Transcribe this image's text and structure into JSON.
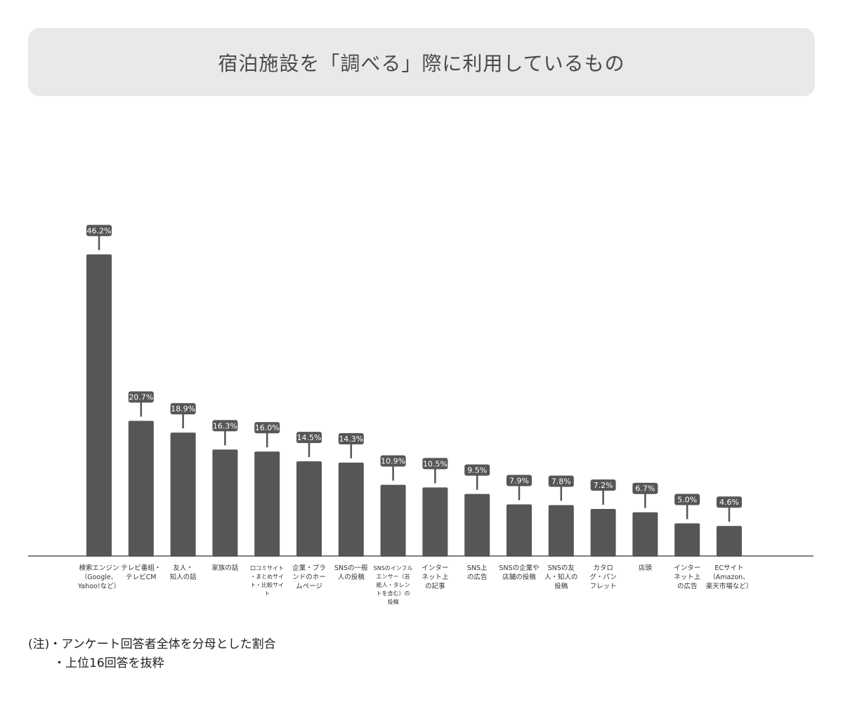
{
  "title": "宿泊施設を「調べる」際に利用しているもの",
  "notes": {
    "line1": "(注)・アンケート回答者全体を分母とした割合",
    "line2": "・上位16回答を抜粋"
  },
  "colors": {
    "bar": "#575557",
    "label_bg": "#575557",
    "label_text": "#ffffff",
    "axis": "#555555",
    "title_bg": "#e9e8ea"
  },
  "chart_data": {
    "type": "bar",
    "title": "宿泊施設を「調べる」際に利用しているもの",
    "unit": "%",
    "categories": [
      [
        "検索エンジン",
        "（Google、",
        "Yahoo!など）"
      ],
      [
        "テレビ番組・",
        "テレビCM"
      ],
      [
        "友人・",
        "知人の話"
      ],
      [
        "家族の話"
      ],
      [
        "口コミサイト",
        "・まとめサイ",
        "ト・比較サイ",
        "ト"
      ],
      [
        "企業・ブラ",
        "ンドのホー",
        "ムページ"
      ],
      [
        "SNSの一般",
        "人の投稿"
      ],
      [
        "SNSのインフル",
        "エンサー（芸",
        "能人・タレン",
        "トを含む）の",
        "投稿"
      ],
      [
        "インター",
        "ネット上",
        "の記事"
      ],
      [
        "SNS上",
        "の広告"
      ],
      [
        "SNSの企業や",
        "店舗の投稿"
      ],
      [
        "SNSの友",
        "人・知人の",
        "投稿"
      ],
      [
        "カタロ",
        "グ・パン",
        "フレット"
      ],
      [
        "店頭"
      ],
      [
        "インター",
        "ネット上",
        "の広告"
      ],
      [
        "ECサイト",
        "（Amazon、",
        "楽天市場など）"
      ]
    ],
    "values": [
      46.2,
      20.7,
      18.9,
      16.3,
      16.0,
      14.5,
      14.3,
      10.9,
      10.5,
      9.5,
      7.9,
      7.8,
      7.2,
      6.7,
      5.0,
      4.6
    ],
    "value_labels": [
      "46.2%",
      "20.7%",
      "18.9%",
      "16.3%",
      "16.0%",
      "14.5%",
      "14.3%",
      "10.9%",
      "10.5%",
      "9.5%",
      "7.9%",
      "7.8%",
      "7.2%",
      "6.7%",
      "5.0%",
      "4.6%"
    ],
    "grid": false,
    "legend": "none"
  }
}
